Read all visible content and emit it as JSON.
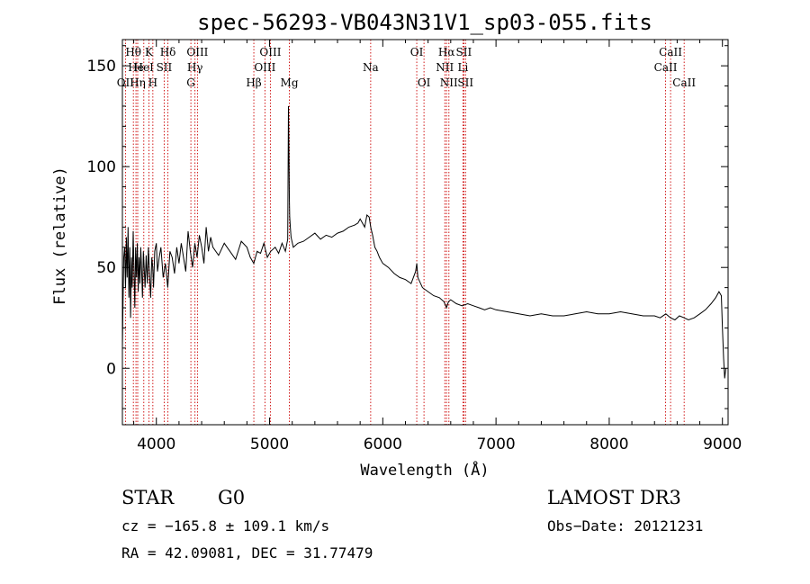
{
  "chart_data": {
    "type": "line",
    "title": "spec-56293-VB043N31V1_sp03-055.fits",
    "xlabel": "Wavelength (Å)",
    "ylabel": "Flux (relative)",
    "xlim": [
      3700,
      9050
    ],
    "ylim": [
      -28,
      163
    ],
    "xticks": [
      4000,
      5000,
      6000,
      7000,
      8000,
      9000
    ],
    "yticks": [
      0,
      50,
      100,
      150
    ],
    "series": [
      {
        "name": "flux",
        "x": [
          3700,
          3705,
          3712,
          3720,
          3728,
          3735,
          3742,
          3750,
          3757,
          3765,
          3772,
          3780,
          3787,
          3795,
          3802,
          3810,
          3817,
          3825,
          3832,
          3840,
          3847,
          3855,
          3862,
          3870,
          3877,
          3885,
          3892,
          3900,
          3910,
          3920,
          3930,
          3940,
          3950,
          3960,
          3968,
          3975,
          3985,
          4000,
          4010,
          4025,
          4040,
          4060,
          4080,
          4101,
          4120,
          4140,
          4160,
          4180,
          4200,
          4220,
          4240,
          4260,
          4280,
          4300,
          4320,
          4340,
          4360,
          4380,
          4400,
          4420,
          4440,
          4460,
          4480,
          4500,
          4550,
          4600,
          4650,
          4700,
          4750,
          4800,
          4830,
          4861,
          4890,
          4920,
          4950,
          4980,
          5010,
          5050,
          5080,
          5110,
          5140,
          5160,
          5167,
          5172,
          5175,
          5178,
          5183,
          5190,
          5210,
          5250,
          5300,
          5350,
          5400,
          5450,
          5500,
          5550,
          5600,
          5650,
          5700,
          5750,
          5780,
          5800,
          5820,
          5840,
          5860,
          5880,
          5893,
          5910,
          5930,
          5950,
          5970,
          6000,
          6050,
          6100,
          6150,
          6200,
          6250,
          6290,
          6300,
          6310,
          6350,
          6400,
          6450,
          6500,
          6540,
          6563,
          6580,
          6600,
          6650,
          6700,
          6750,
          6800,
          6850,
          6900,
          6950,
          7000,
          7100,
          7200,
          7300,
          7400,
          7500,
          7600,
          7700,
          7800,
          7900,
          8000,
          8100,
          8200,
          8300,
          8400,
          8450,
          8500,
          8542,
          8580,
          8620,
          8662,
          8700,
          8750,
          8800,
          8850,
          8900,
          8940,
          8970,
          8990,
          9000,
          9010,
          9020,
          9030
        ],
        "y": [
          10,
          30,
          55,
          60,
          40,
          65,
          45,
          70,
          35,
          60,
          25,
          55,
          40,
          68,
          50,
          30,
          60,
          45,
          62,
          38,
          55,
          42,
          60,
          48,
          35,
          58,
          50,
          40,
          56,
          42,
          60,
          46,
          35,
          55,
          50,
          40,
          58,
          62,
          48,
          55,
          60,
          45,
          52,
          40,
          58,
          55,
          47,
          60,
          52,
          62,
          55,
          48,
          68,
          58,
          50,
          62,
          55,
          66,
          60,
          52,
          70,
          58,
          65,
          60,
          56,
          62,
          58,
          54,
          63,
          60,
          55,
          52,
          58,
          57,
          62,
          55,
          58,
          60,
          57,
          62,
          58,
          64,
          130,
          100,
          85,
          75,
          70,
          65,
          60,
          62,
          63,
          65,
          67,
          64,
          66,
          65,
          67,
          68,
          70,
          71,
          72,
          74,
          72,
          70,
          76,
          75,
          70,
          66,
          60,
          58,
          55,
          52,
          50,
          47,
          45,
          44,
          42,
          48,
          52,
          45,
          40,
          38,
          36,
          35,
          33,
          30,
          33,
          34,
          32,
          31,
          32,
          31,
          30,
          29,
          30,
          29,
          28,
          27,
          26,
          27,
          26,
          26,
          27,
          28,
          27,
          27,
          28,
          27,
          26,
          26,
          25,
          27,
          25,
          24,
          26,
          25,
          24,
          25,
          27,
          29,
          32,
          35,
          38,
          36,
          20,
          5,
          -5,
          0
        ]
      }
    ],
    "line_labels": [
      {
        "label": "Hθ",
        "x": 3797,
        "row": 0
      },
      {
        "label": "OII",
        "x": 3727,
        "row": 2
      },
      {
        "label": "He",
        "x": 3820,
        "row": 1
      },
      {
        "label": "Hη",
        "x": 3835,
        "row": 2
      },
      {
        "label": "K",
        "x": 3934,
        "row": 0
      },
      {
        "label": "HeI",
        "x": 3889,
        "row": 1
      },
      {
        "label": "SII",
        "x": 4069,
        "row": 1
      },
      {
        "label": "H",
        "x": 3969,
        "row": 2
      },
      {
        "label": "Hδ",
        "x": 4102,
        "row": 0
      },
      {
        "label": "OIII",
        "x": 4363,
        "row": 0
      },
      {
        "label": "Hγ",
        "x": 4341,
        "row": 1
      },
      {
        "label": "G",
        "x": 4305,
        "row": 2
      },
      {
        "label": "OIII",
        "x": 5007,
        "row": 0
      },
      {
        "label": "OIII",
        "x": 4959,
        "row": 1
      },
      {
        "label": "Hβ",
        "x": 4861,
        "row": 2
      },
      {
        "label": "Mg",
        "x": 5175,
        "row": 2
      },
      {
        "label": "Na",
        "x": 5893,
        "row": 1
      },
      {
        "label": "OI",
        "x": 6300,
        "row": 0
      },
      {
        "label": "OI",
        "x": 6364,
        "row": 2
      },
      {
        "label": "Hα",
        "x": 6563,
        "row": 0
      },
      {
        "label": "SII",
        "x": 6716,
        "row": 0
      },
      {
        "label": "NII",
        "x": 6548,
        "row": 1
      },
      {
        "label": "Li",
        "x": 6708,
        "row": 1
      },
      {
        "label": "NII",
        "x": 6584,
        "row": 2
      },
      {
        "label": "SII",
        "x": 6731,
        "row": 2
      },
      {
        "label": "CaII",
        "x": 8542,
        "row": 0
      },
      {
        "label": "CaII",
        "x": 8498,
        "row": 1
      },
      {
        "label": "CaII",
        "x": 8662,
        "row": 2
      }
    ],
    "line_marker_color": "#cc0000"
  },
  "info": {
    "class_label": "STAR",
    "subclass": "G0",
    "survey": "LAMOST DR3",
    "cz": "cz = −165.8 ± 109.1 km/s",
    "obs_date": "Obs−Date: 20121231",
    "radec": "RA =  42.09081, DEC =  31.77479"
  }
}
